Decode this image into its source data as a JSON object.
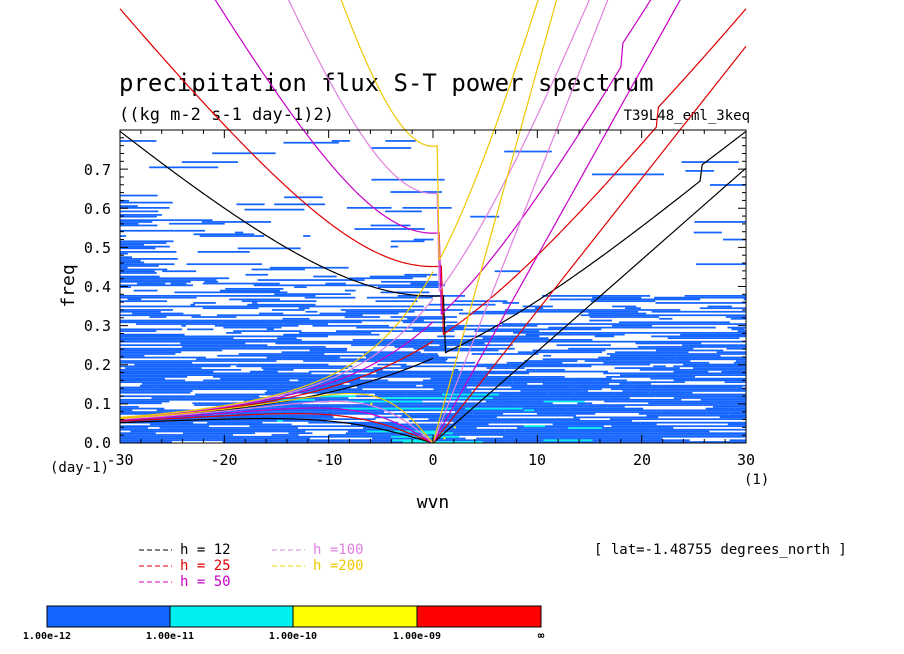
{
  "chart_data": {
    "type": "heatmap",
    "title": "precipitation flux S-T power spectrum",
    "subtitle": "((kg m-2 s-1 day-1)2)",
    "run_label": "T39L48_eml_3keq",
    "xlabel": "wvn",
    "ylabel": "freq",
    "x_unit": "(1)",
    "y_unit": "(day-1)",
    "xlim": [
      -30,
      30
    ],
    "ylim": [
      0,
      0.8
    ],
    "xticks": [
      -30,
      -20,
      -10,
      0,
      10,
      20,
      30
    ],
    "yticks": [
      0.0,
      0.1,
      0.2,
      0.3,
      0.4,
      0.5,
      0.6,
      0.7
    ],
    "xtick_labels": [
      "-30",
      "-20",
      "-10",
      "0",
      "10",
      "20",
      "30"
    ],
    "ytick_labels": [
      "0.0",
      "0.1",
      "0.2",
      "0.3",
      "0.4",
      "0.5",
      "0.6",
      "0.7"
    ],
    "latitude_note": "[ lat=-1.48755 degrees_north ]",
    "dispersion_curves": [
      {
        "name": "h = 12",
        "h": 12,
        "color": "#000000"
      },
      {
        "name": "h = 25",
        "h": 25,
        "color": "#e00000"
      },
      {
        "name": "h = 50",
        "h": 50,
        "color": "#c800c8"
      },
      {
        "name": "h =100",
        "h": 100,
        "color": "#e080e0"
      },
      {
        "name": "h =200",
        "h": 200,
        "color": "#f0c800"
      }
    ],
    "colorbar": {
      "colors": [
        "#1464ff",
        "#00f0f0",
        "#ffff00",
        "#ff0000"
      ],
      "labels": [
        "1.00e-12",
        "1.00e-11",
        "1.00e-10",
        "1.00e-09",
        "∞"
      ]
    }
  }
}
